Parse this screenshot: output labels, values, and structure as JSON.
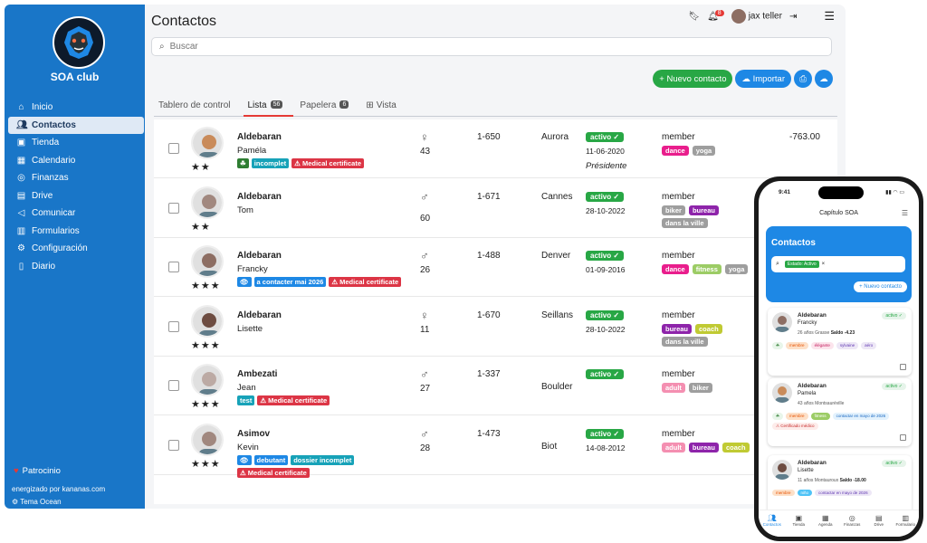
{
  "sidebar": {
    "club_name": "SOA club",
    "items": [
      {
        "label": "Inicio",
        "icon": "home-icon"
      },
      {
        "label": "Contactos",
        "icon": "people-icon",
        "active": true
      },
      {
        "label": "Tienda",
        "icon": "store-icon"
      },
      {
        "label": "Calendario",
        "icon": "calendar-icon"
      },
      {
        "label": "Finanzas",
        "icon": "finance-icon"
      },
      {
        "label": "Drive",
        "icon": "drive-icon"
      },
      {
        "label": "Comunicar",
        "icon": "megaphone-icon"
      },
      {
        "label": "Formularios",
        "icon": "form-icon"
      },
      {
        "label": "Configuración",
        "icon": "gear-icon"
      },
      {
        "label": "Diario",
        "icon": "journal-icon"
      }
    ],
    "patrocinio": "Patrocinio",
    "powered": "energizado por kananas.com",
    "theme": "Tema Ocean"
  },
  "header": {
    "title": "Contactos",
    "notif_count": "8",
    "user": "jax teller"
  },
  "search": {
    "placeholder": "Buscar"
  },
  "actions": {
    "new_contact": "Nuevo contacto",
    "import": "Importar"
  },
  "tabs": [
    {
      "label": "Tablero de control"
    },
    {
      "label": "Lista",
      "count": "56",
      "active": true
    },
    {
      "label": "Papelera",
      "count": "6"
    },
    {
      "label": "Vista"
    }
  ],
  "rows": [
    {
      "last": "Aldebaran",
      "first": "Paméla",
      "stars": "★★",
      "tags": [
        {
          "t": "☘",
          "c": "t-green"
        },
        {
          "t": "incomplet",
          "c": "t-teal"
        },
        {
          "t": "⚠ Medical certificate",
          "c": "t-red"
        }
      ],
      "gender": "♀",
      "age": "43",
      "num": "1-650",
      "city": "Aurora",
      "status": "activo ✓",
      "date": "11-06-2020",
      "role": "Présidente",
      "type": "member",
      "mtags": [
        {
          "t": "dance",
          "c": "#e91e8c"
        },
        {
          "t": "yoga",
          "c": "#9e9e9e"
        }
      ],
      "amount": "-763.00",
      "ph": "#c98b5a"
    },
    {
      "last": "Aldebaran",
      "first": "Tom",
      "stars": "★★",
      "tags": [],
      "gender": "♂",
      "age": "60",
      "num": "1-671",
      "city": "Cannes",
      "status": "activo ✓",
      "date": "28-10-2022",
      "role": "",
      "type": "member",
      "mtags": [
        {
          "t": "biker",
          "c": "#9e9e9e"
        },
        {
          "t": "bureau",
          "c": "#8e24aa"
        },
        {
          "t": "dans la ville",
          "c": "#9e9e9e"
        }
      ],
      "amount": "",
      "ph": "#a1887f"
    },
    {
      "last": "Aldebaran",
      "first": "Francky",
      "stars": "★★★",
      "tags": [
        {
          "t": "👁",
          "c": "t-blue"
        },
        {
          "t": "a contacter mai 2026",
          "c": "t-blue"
        },
        {
          "t": "⚠ Medical certificate",
          "c": "t-red"
        }
      ],
      "gender": "♂",
      "age": "26",
      "num": "1-488",
      "city": "Denver",
      "status": "activo ✓",
      "date": "01-09-2016",
      "role": "",
      "type": "member",
      "mtags": [
        {
          "t": "dance",
          "c": "#e91e8c"
        },
        {
          "t": "fitness",
          "c": "#9ccc65"
        },
        {
          "t": "yoga",
          "c": "#9e9e9e"
        }
      ],
      "amount": "",
      "ph": "#8d6e63"
    },
    {
      "last": "Aldebaran",
      "first": "Lisette",
      "stars": "★★★",
      "tags": [],
      "gender": "♀",
      "age": "11",
      "num": "1-670",
      "city": "Seillans",
      "status": "activo ✓",
      "date": "28-10-2022",
      "role": "",
      "type": "member",
      "mtags": [
        {
          "t": "bureau",
          "c": "#8e24aa"
        },
        {
          "t": "coach",
          "c": "#c0ca33"
        },
        {
          "t": "dans la ville",
          "c": "#9e9e9e"
        }
      ],
      "amount": "",
      "ph": "#6d4c41"
    },
    {
      "last": "Ambezati",
      "first": "Jean",
      "stars": "★★★",
      "tags": [
        {
          "t": "test",
          "c": "t-teal"
        },
        {
          "t": "⚠ Medical certificate",
          "c": "t-red"
        }
      ],
      "gender": "♂",
      "age": "27",
      "num": "1-337",
      "city": "Boulder",
      "status": "activo ✓",
      "date": "",
      "role": "",
      "type": "member",
      "mtags": [
        {
          "t": "adult",
          "c": "#f48fb1"
        },
        {
          "t": "biker",
          "c": "#9e9e9e"
        }
      ],
      "amount": "",
      "ph": "#bcaaa4"
    },
    {
      "last": "Asimov",
      "first": "Kevin",
      "stars": "★★★",
      "tags": [
        {
          "t": "👁",
          "c": "t-blue"
        },
        {
          "t": "debutant",
          "c": "t-blue"
        },
        {
          "t": "dossier incomplet",
          "c": "t-teal"
        },
        {
          "t": "⚠ Medical certificate",
          "c": "t-red"
        }
      ],
      "gender": "♂",
      "age": "28",
      "num": "1-473",
      "city": "Biot",
      "status": "activo ✓",
      "date": "14-08-2012",
      "role": "",
      "type": "member",
      "mtags": [
        {
          "t": "adult",
          "c": "#f48fb1"
        },
        {
          "t": "bureau",
          "c": "#8e24aa"
        },
        {
          "t": "coach",
          "c": "#c0ca33"
        }
      ],
      "amount": "",
      "ph": "#a1887f"
    }
  ],
  "phone": {
    "time": "9:41",
    "header": "Capítulo SOA",
    "title": "Contactos",
    "filter": "Estado: Activo",
    "new_btn": "+ Nuevo contacto",
    "cards": [
      {
        "last": "Aldebaran",
        "first": "Francky",
        "meta1": "26 años Grasse",
        "saldo": "Saldo -4.23",
        "status": "activo ✓",
        "tags": [
          {
            "t": "☘",
            "bg": "#e8f5e9",
            "c": "#2e7d32"
          },
          {
            "t": "membre",
            "bg": "#fde0c8",
            "c": "#e65100"
          },
          {
            "t": "élégante",
            "bg": "#fce4ec",
            "c": "#c2185b"
          },
          {
            "t": "sylvaine",
            "bg": "#ede7f6",
            "c": "#5e35b1"
          },
          {
            "t": "aéro",
            "bg": "#ede7f6",
            "c": "#5e35b1"
          }
        ],
        "ph": "#8d6e63"
      },
      {
        "last": "Aldebaran",
        "first": "Pamela",
        "meta1": "43 años Montsauréville",
        "saldo": "",
        "status": "activo ✓",
        "tags": [
          {
            "t": "☘",
            "bg": "#e8f5e9",
            "c": "#2e7d32"
          },
          {
            "t": "membre",
            "bg": "#fde0c8",
            "c": "#e65100"
          },
          {
            "t": "fitness",
            "bg": "#9ccc65",
            "c": "#fff"
          },
          {
            "t": "contactar en mayo de 2026",
            "bg": "#e3f2fd",
            "c": "#1565c0"
          },
          {
            "t": "⚠ Certificado médico",
            "bg": "#fdecea",
            "c": "#c62828"
          }
        ],
        "ph": "#c98b5a"
      },
      {
        "last": "Aldebaran",
        "first": "Lisette",
        "meta1": "11 años Montauroux",
        "saldo": "Saldo -18.00",
        "status": "activo ✓",
        "tags": [
          {
            "t": "membre",
            "bg": "#fde0c8",
            "c": "#e65100"
          },
          {
            "t": "niño",
            "bg": "#4fc3f7",
            "c": "#fff"
          },
          {
            "t": "contactar en mayo de 2026",
            "bg": "#ede7f6",
            "c": "#5e35b1"
          }
        ],
        "ph": "#6d4c41"
      }
    ],
    "nav": [
      {
        "label": "Contactos",
        "icon": "people-icon",
        "active": true
      },
      {
        "label": "Tienda",
        "icon": "store-icon"
      },
      {
        "label": "Agenda",
        "icon": "calendar-icon"
      },
      {
        "label": "Finanzas",
        "icon": "finance-icon"
      },
      {
        "label": "Drive",
        "icon": "drive-icon"
      },
      {
        "label": "Formulario",
        "icon": "form-icon"
      }
    ]
  }
}
